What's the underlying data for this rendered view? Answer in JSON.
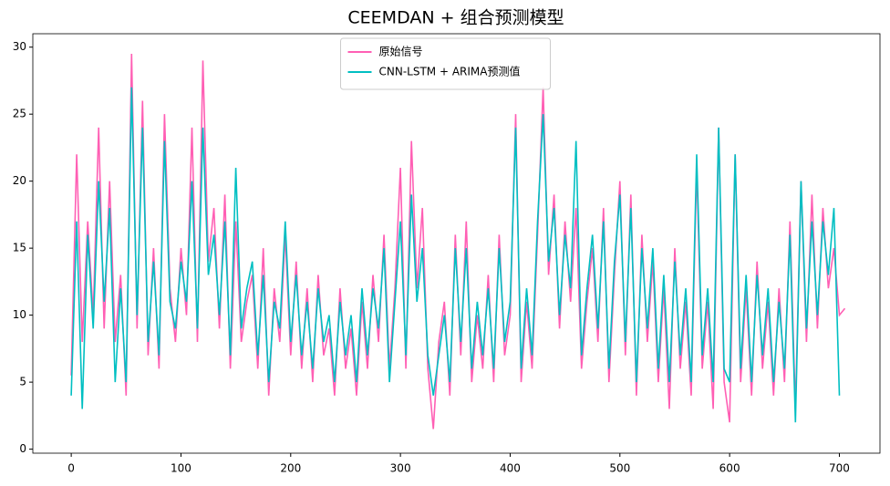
{
  "chart_data": {
    "type": "line",
    "title": "CEEMDAN + 组合预测模型",
    "x": [
      0,
      5,
      10,
      15,
      20,
      25,
      30,
      35,
      40,
      45,
      50,
      55,
      60,
      65,
      70,
      75,
      80,
      85,
      90,
      95,
      100,
      105,
      110,
      115,
      120,
      125,
      130,
      135,
      140,
      145,
      150,
      155,
      160,
      165,
      170,
      175,
      180,
      185,
      190,
      195,
      200,
      205,
      210,
      215,
      220,
      225,
      230,
      235,
      240,
      245,
      250,
      255,
      260,
      265,
      270,
      275,
      280,
      285,
      290,
      295,
      300,
      305,
      310,
      315,
      320,
      325,
      330,
      335,
      340,
      345,
      350,
      355,
      360,
      365,
      370,
      375,
      380,
      385,
      390,
      395,
      400,
      405,
      410,
      415,
      420,
      425,
      430,
      435,
      440,
      445,
      450,
      455,
      460,
      465,
      470,
      475,
      480,
      485,
      490,
      495,
      500,
      505,
      510,
      515,
      520,
      525,
      530,
      535,
      540,
      545,
      550,
      555,
      560,
      565,
      570,
      575,
      580,
      585,
      590,
      595,
      600,
      605,
      610,
      615,
      620,
      625,
      630,
      635,
      640,
      645,
      650,
      655,
      660,
      665,
      670,
      675,
      680,
      685,
      690,
      695,
      700,
      705
    ],
    "series": [
      {
        "name": "原始信号",
        "color": "#ff5fb4",
        "values": [
          5.5,
          22,
          8,
          17,
          10,
          24,
          9,
          20,
          8,
          13,
          4,
          29.5,
          9,
          26,
          7,
          15,
          6,
          25,
          12,
          8,
          15,
          10,
          24,
          8,
          29,
          14,
          18,
          9,
          19,
          6,
          17,
          8,
          11,
          13,
          6,
          15,
          4,
          12,
          8,
          16,
          7,
          14,
          6,
          12,
          5,
          13,
          7,
          9,
          4,
          12,
          6,
          9,
          4,
          11,
          6,
          13,
          8,
          16,
          6,
          12,
          21,
          6,
          23,
          12,
          18,
          6,
          1.5,
          8,
          11,
          4,
          16,
          7,
          17,
          5,
          10,
          6,
          13,
          5,
          16,
          7,
          10,
          25,
          5,
          11,
          6,
          16,
          27,
          13,
          19,
          9,
          17,
          11,
          18,
          6,
          11,
          15,
          8,
          18,
          5,
          13,
          20,
          7,
          19,
          4,
          16,
          8,
          14,
          5,
          12,
          3,
          15,
          6,
          11,
          4,
          21,
          6,
          11,
          3,
          24,
          5,
          2,
          22,
          5,
          12,
          4,
          14,
          6,
          11,
          4,
          12,
          5,
          17,
          3,
          20,
          8,
          19,
          9,
          18,
          12,
          15,
          10,
          10.5
        ]
      },
      {
        "name": "CNN-LSTM + ARIMA预测值",
        "color": "#00bfc2",
        "values": [
          4,
          17,
          3,
          16,
          9,
          20,
          11,
          18,
          5,
          12,
          5,
          27,
          10,
          24,
          8,
          14,
          7,
          23,
          11,
          9,
          14,
          11,
          20,
          9,
          24,
          13,
          16,
          10,
          17,
          7,
          21,
          9,
          12,
          14,
          7,
          13,
          5,
          11,
          9,
          17,
          8,
          13,
          7,
          11,
          6,
          12,
          8,
          10,
          5,
          11,
          7,
          10,
          5,
          12,
          7,
          12,
          9,
          15,
          5,
          11,
          17,
          7,
          19,
          11,
          15,
          7,
          4,
          7,
          10,
          5,
          15,
          8,
          15,
          6,
          11,
          7,
          12,
          6,
          15,
          8,
          11,
          24,
          6,
          12,
          7,
          17,
          25,
          14,
          18,
          10,
          16,
          12,
          23,
          7,
          12,
          16,
          9,
          17,
          6,
          14,
          19,
          8,
          18,
          5,
          15,
          9,
          15,
          6,
          13,
          5,
          14,
          7,
          12,
          5,
          22,
          7,
          12,
          5,
          24,
          6,
          5,
          22,
          6,
          13,
          5,
          13,
          7,
          12,
          5,
          11,
          6,
          16,
          2,
          20,
          9,
          17,
          10,
          17,
          13,
          18,
          4,
          null
        ]
      }
    ],
    "xlim": [
      -35,
      737
    ],
    "ylim": [
      -0.3,
      31
    ],
    "xticks": [
      0,
      100,
      200,
      300,
      400,
      500,
      600,
      700
    ],
    "yticks": [
      0,
      5,
      10,
      15,
      20,
      25,
      30
    ],
    "legend": "upper center"
  }
}
